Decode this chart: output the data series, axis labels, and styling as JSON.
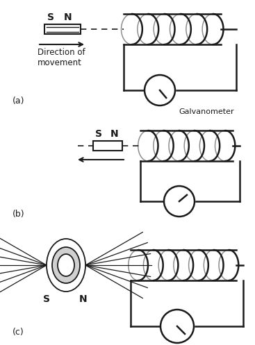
{
  "bg_color": "#ffffff",
  "line_color": "#1a1a1a",
  "fig_width": 3.67,
  "fig_height": 4.97,
  "dpi": 100,
  "galvanometer_label": "Galvanometer",
  "direction_label": "Direction of\nmovement",
  "panel_a_label": "(a)",
  "panel_b_label": "(b)",
  "panel_c_label": "(c)"
}
